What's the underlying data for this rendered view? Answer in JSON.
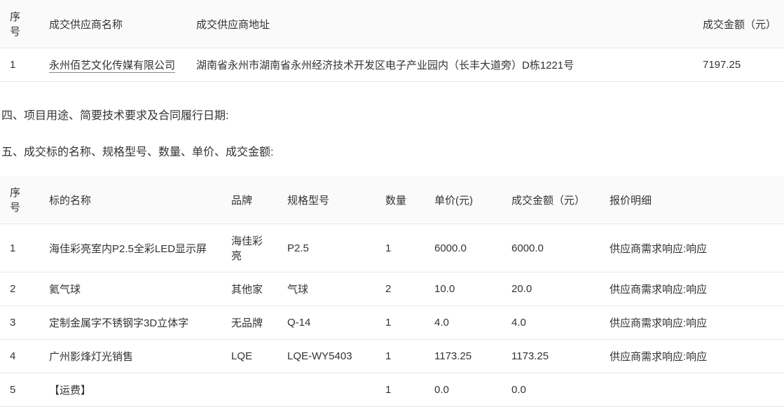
{
  "table1": {
    "columns": [
      "序号",
      "成交供应商名称",
      "成交供应商地址",
      "成交金额（元）"
    ],
    "rows": [
      {
        "no": "1",
        "supplier": "永州佰艺文化传媒有限公司",
        "address": "湖南省永州市湖南省永州经济技术开发区电子产业园内（长丰大道旁）D栋1221号",
        "amount": "7197.25"
      }
    ]
  },
  "section4_title": "四、项目用途、简要技术要求及合同履行日期:",
  "section5_title": "五、成交标的名称、规格型号、数量、单价、成交金额:",
  "table2": {
    "columns": [
      "序号",
      "标的名称",
      "品牌",
      "规格型号",
      "数量",
      "单价(元)",
      "成交金额（元）",
      "报价明细"
    ],
    "rows": [
      {
        "no": "1",
        "name": "海佳彩亮室内P2.5全彩LED显示屏",
        "brand": "海佳彩亮",
        "model": "P2.5",
        "qty": "1",
        "unit": "6000.0",
        "amount": "6000.0",
        "detail": "供应商需求响应:响应"
      },
      {
        "no": "2",
        "name": "氦气球",
        "brand": "其他家",
        "model": "气球",
        "qty": "2",
        "unit": "10.0",
        "amount": "20.0",
        "detail": "供应商需求响应:响应"
      },
      {
        "no": "3",
        "name": "定制金属字不锈钢字3D立体字",
        "brand": "无品牌",
        "model": "Q-14",
        "qty": "1",
        "unit": "4.0",
        "amount": "4.0",
        "detail": "供应商需求响应:响应"
      },
      {
        "no": "4",
        "name": "广州影烽灯光销售",
        "brand": "LQE",
        "model": "LQE-WY5403",
        "qty": "1",
        "unit": "1173.25",
        "amount": "1173.25",
        "detail": "供应商需求响应:响应"
      },
      {
        "no": "5",
        "name": "【运费】",
        "brand": "",
        "model": "",
        "qty": "1",
        "unit": "0.0",
        "amount": "0.0",
        "detail": ""
      }
    ]
  }
}
